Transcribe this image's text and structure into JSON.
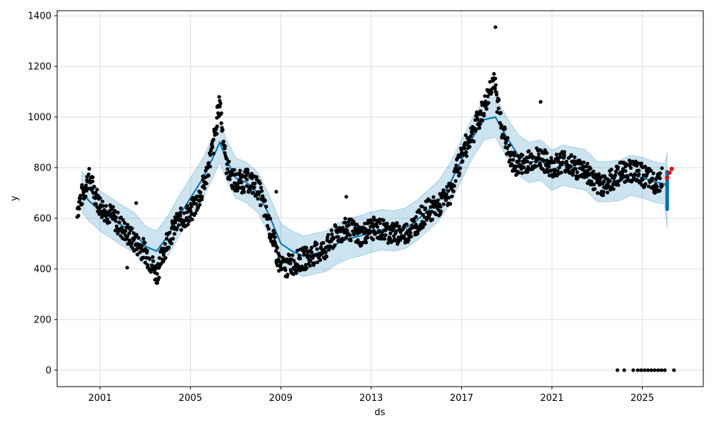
{
  "chart_data": {
    "type": "scatter",
    "title": "",
    "xlabel": "ds",
    "ylabel": "y",
    "xlim": [
      1999.1,
      2027.7
    ],
    "ylim": [
      -65,
      1420
    ],
    "xticks": [
      "2001",
      "2005",
      "2009",
      "2013",
      "2017",
      "2021",
      "2025"
    ],
    "yticks": [
      "0",
      "200",
      "400",
      "600",
      "800",
      "1000",
      "1200",
      "1400"
    ],
    "grid": true,
    "colors": {
      "observed": "#000000",
      "forecast_line": "#0072B2",
      "interval": "#0072B2",
      "highlight": "#ff0000"
    },
    "forecast": {
      "x": [
        2000.2,
        2000.5,
        2001.0,
        2001.5,
        2002.0,
        2002.5,
        2003.0,
        2003.5,
        2004.0,
        2004.5,
        2005.0,
        2005.5,
        2006.0,
        2006.3,
        2006.6,
        2007.0,
        2007.5,
        2008.0,
        2008.5,
        2009.0,
        2009.5,
        2010.0,
        2010.5,
        2011.0,
        2011.5,
        2012.0,
        2012.5,
        2013.0,
        2013.5,
        2014.0,
        2014.5,
        2015.0,
        2015.5,
        2016.0,
        2016.5,
        2017.0,
        2017.5,
        2018.0,
        2018.5,
        2019.0,
        2019.5,
        2020.0,
        2020.5,
        2021.0,
        2021.5,
        2022.0,
        2022.5,
        2023.0,
        2023.5,
        2024.0,
        2024.5,
        2025.0,
        2025.5,
        2026.0,
        2026.1
      ],
      "yhat": [
        705,
        670,
        630,
        600,
        570,
        545,
        490,
        470,
        530,
        610,
        680,
        750,
        840,
        900,
        830,
        760,
        740,
        700,
        610,
        500,
        470,
        450,
        460,
        470,
        500,
        520,
        530,
        545,
        555,
        550,
        560,
        590,
        630,
        670,
        740,
        830,
        920,
        990,
        1000,
        920,
        850,
        820,
        830,
        790,
        810,
        800,
        790,
        745,
        745,
        750,
        770,
        760,
        745,
        735,
        720
      ],
      "lower": [
        625,
        590,
        550,
        520,
        490,
        465,
        410,
        390,
        450,
        530,
        600,
        670,
        760,
        820,
        750,
        680,
        660,
        620,
        530,
        420,
        390,
        370,
        380,
        390,
        420,
        440,
        450,
        465,
        475,
        470,
        480,
        510,
        550,
        590,
        660,
        750,
        840,
        910,
        920,
        840,
        770,
        740,
        750,
        710,
        730,
        720,
        710,
        665,
        665,
        670,
        690,
        680,
        665,
        655,
        560
      ],
      "upper": [
        785,
        750,
        710,
        680,
        650,
        625,
        570,
        550,
        610,
        690,
        760,
        830,
        920,
        980,
        910,
        840,
        820,
        780,
        690,
        580,
        550,
        530,
        540,
        550,
        580,
        600,
        610,
        625,
        635,
        630,
        640,
        670,
        710,
        750,
        820,
        910,
        1000,
        1070,
        1080,
        1000,
        930,
        900,
        910,
        870,
        890,
        880,
        870,
        825,
        825,
        830,
        850,
        840,
        825,
        815,
        860
      ]
    },
    "observed_trend": {
      "x": [
        2000.0,
        2000.5,
        2001.0,
        2001.5,
        2002.0,
        2002.5,
        2003.0,
        2003.5,
        2004.0,
        2004.5,
        2005.0,
        2005.5,
        2006.0,
        2006.3,
        2006.6,
        2007.0,
        2007.5,
        2008.0,
        2008.5,
        2009.0,
        2009.5,
        2010.0,
        2010.5,
        2011.0,
        2011.5,
        2012.0,
        2012.5,
        2013.0,
        2013.5,
        2014.0,
        2014.5,
        2015.0,
        2015.5,
        2016.0,
        2016.5,
        2017.0,
        2017.5,
        2018.0,
        2018.4,
        2018.8,
        2019.2,
        2019.6,
        2020.0,
        2020.5,
        2021.0,
        2021.5,
        2022.0,
        2022.5,
        2023.0,
        2023.5,
        2024.0,
        2024.5,
        2025.0,
        2025.5,
        2025.9
      ],
      "y": [
        640,
        760,
        650,
        610,
        560,
        510,
        470,
        380,
        520,
        590,
        620,
        700,
        880,
        1060,
        800,
        740,
        750,
        720,
        570,
        400,
        420,
        440,
        460,
        480,
        540,
        560,
        530,
        560,
        555,
        540,
        540,
        580,
        630,
        650,
        700,
        850,
        940,
        1040,
        1150,
        960,
        820,
        810,
        830,
        840,
        800,
        830,
        800,
        790,
        730,
        740,
        780,
        790,
        770,
        740,
        760
      ]
    },
    "outliers": [
      {
        "x": 2018.5,
        "y": 1355
      },
      {
        "x": 2020.5,
        "y": 1060
      },
      {
        "x": 2011.9,
        "y": 685
      },
      {
        "x": 2008.8,
        "y": 705
      },
      {
        "x": 2002.2,
        "y": 405
      },
      {
        "x": 2002.6,
        "y": 660
      }
    ],
    "zeros_x": [
      2023.9,
      2024.2,
      2024.6,
      2024.8,
      2024.95,
      2025.1,
      2025.25,
      2025.4,
      2025.55,
      2025.7,
      2025.85,
      2026.0,
      2026.4
    ],
    "highlight_x": [
      2026.1,
      2026.2,
      2026.3
    ],
    "highlight_y": [
      760,
      780,
      795
    ]
  }
}
